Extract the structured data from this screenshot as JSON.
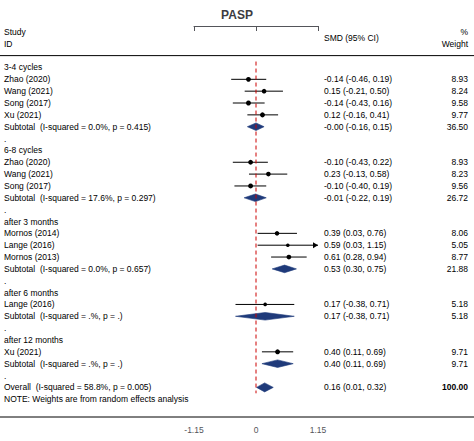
{
  "chart_data": {
    "type": "forest",
    "title": "PASP",
    "xlim": [
      -1.15,
      1.15
    ],
    "xticks": [
      -1.15,
      0,
      1.15
    ],
    "grid": false,
    "color": "#000000",
    "header": {
      "study": [
        "Study",
        "ID"
      ],
      "smd": "SMD (95% CI)",
      "weight": [
        "%",
        "Weight"
      ]
    },
    "separator": ".",
    "note": "NOTE: Weights are from random effects analysis",
    "reference_line": {
      "value": 0,
      "color": "#cc0000",
      "line_style": "dashed"
    },
    "groups": [
      {
        "label": "3-4 cycles",
        "studies": [
          {
            "name": "Zhao (2020)",
            "smd": -0.14,
            "ci_lo": -0.46,
            "ci_hi": 0.19,
            "weight": 8.93,
            "smd_label": "-0.14 (-0.46, 0.19)"
          },
          {
            "name": "Wang (2021)",
            "smd": 0.15,
            "ci_lo": -0.21,
            "ci_hi": 0.5,
            "weight": 8.24,
            "smd_label": "0.15 (-0.21, 0.50)"
          },
          {
            "name": "Song (2017)",
            "smd": -0.14,
            "ci_lo": -0.43,
            "ci_hi": 0.16,
            "weight": 9.58,
            "smd_label": "-0.14 (-0.43, 0.16)"
          },
          {
            "name": "Xu (2021)",
            "smd": 0.12,
            "ci_lo": -0.16,
            "ci_hi": 0.41,
            "weight": 9.77,
            "smd_label": "0.12 (-0.16, 0.41)"
          }
        ],
        "subtotal": {
          "label": "Subtotal  (I-squared = 0.0%, p = 0.415)",
          "smd": -0.0,
          "ci_lo": -0.16,
          "ci_hi": 0.15,
          "weight": 36.5,
          "weight_label": "36.50",
          "smd_label": "-0.00 (-0.16, 0.15)",
          "color": "#1f3a7a"
        }
      },
      {
        "label": "6-8 cycles",
        "studies": [
          {
            "name": "Zhao (2020)",
            "smd": -0.1,
            "ci_lo": -0.43,
            "ci_hi": 0.22,
            "weight": 8.93,
            "smd_label": "-0.10 (-0.43, 0.22)"
          },
          {
            "name": "Wang (2021)",
            "smd": 0.23,
            "ci_lo": -0.13,
            "ci_hi": 0.58,
            "weight": 8.23,
            "smd_label": "0.23 (-0.13, 0.58)"
          },
          {
            "name": "Song (2017)",
            "smd": -0.1,
            "ci_lo": -0.4,
            "ci_hi": 0.19,
            "weight": 9.56,
            "smd_label": "-0.10 (-0.40, 0.19)"
          }
        ],
        "subtotal": {
          "label": "Subtotal  (I-squared = 17.6%, p = 0.297)",
          "smd": -0.01,
          "ci_lo": -0.22,
          "ci_hi": 0.19,
          "weight": 26.72,
          "smd_label": "-0.01 (-0.22, 0.19)",
          "color": "#1f3a7a"
        }
      },
      {
        "label": "after 3 months",
        "studies": [
          {
            "name": "Mornos (2014)",
            "smd": 0.39,
            "ci_lo": 0.03,
            "ci_hi": 0.76,
            "weight": 8.06,
            "smd_label": "0.39 (0.03, 0.76)"
          },
          {
            "name": "Lange (2016)",
            "smd": 0.59,
            "ci_lo": 0.03,
            "ci_hi": 1.15,
            "weight": 5.05,
            "smd_label": "0.59 (0.03, 1.15)"
          },
          {
            "name": "Mornos (2013)",
            "smd": 0.61,
            "ci_lo": 0.28,
            "ci_hi": 0.94,
            "weight": 8.77,
            "smd_label": "0.61 (0.28, 0.94)"
          }
        ],
        "subtotal": {
          "label": "Subtotal  (I-squared = 0.0%, p = 0.657)",
          "smd": 0.53,
          "ci_lo": 0.3,
          "ci_hi": 0.75,
          "weight": 21.88,
          "smd_label": "0.53 (0.30, 0.75)",
          "color": "#1f3a7a"
        }
      },
      {
        "label": "after 6 months",
        "studies": [
          {
            "name": "Lange (2016)",
            "smd": 0.17,
            "ci_lo": -0.38,
            "ci_hi": 0.71,
            "weight": 5.18,
            "smd_label": "0.17 (-0.38, 0.71)"
          }
        ],
        "subtotal": {
          "label": "Subtotal  (I-squared = .%, p = .)",
          "smd": 0.17,
          "ci_lo": -0.38,
          "ci_hi": 0.71,
          "weight": 5.18,
          "smd_label": "0.17 (-0.38, 0.71)",
          "color": "#1f3a7a"
        }
      },
      {
        "label": "after 12 months",
        "studies": [
          {
            "name": "Xu (2021)",
            "smd": 0.4,
            "ci_lo": 0.11,
            "ci_hi": 0.69,
            "weight": 9.71,
            "smd_label": "0.40 (0.11, 0.69)"
          }
        ],
        "subtotal": {
          "label": "Subtotal  (I-squared = .%, p = .)",
          "smd": 0.4,
          "ci_lo": 0.11,
          "ci_hi": 0.69,
          "weight": 9.71,
          "smd_label": "0.40 (0.11, 0.69)",
          "color": "#1f3a7a"
        }
      }
    ],
    "overall": {
      "label": "Overall  (I-squared = 58.8%, p = 0.005)",
      "smd": 0.16,
      "ci_lo": 0.01,
      "ci_hi": 0.32,
      "weight": 100,
      "weight_label": "100.00",
      "smd_label": "0.16 (0.01, 0.32)",
      "color": "#1f3a7a"
    }
  }
}
